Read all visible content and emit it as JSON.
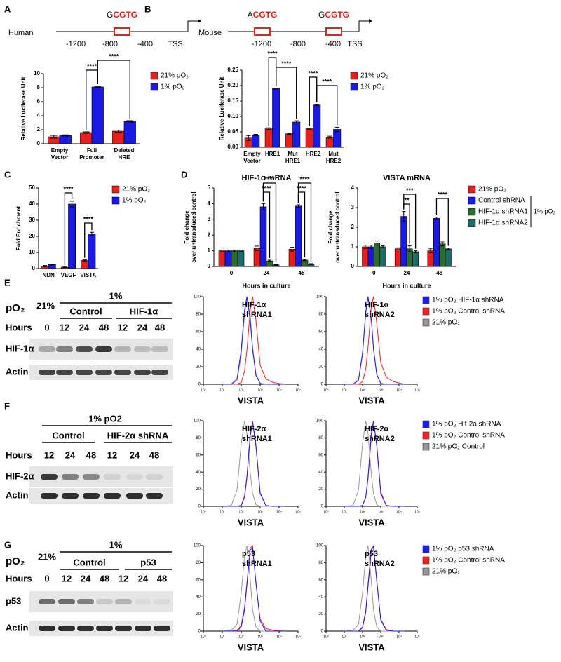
{
  "diagrams": [
    {
      "panel": "A",
      "species": "Human",
      "ticks": [
        "-1200",
        "-800",
        "-400",
        "TSS"
      ],
      "sites": [
        {
          "prefix": "G",
          "core": "CGTG"
        }
      ]
    },
    {
      "panel": "B",
      "species": "Mouse",
      "ticks": [
        "-1200",
        "-800",
        "-400",
        "TSS"
      ],
      "sites": [
        {
          "prefix": "A",
          "core": "CGTG"
        },
        {
          "prefix": "G",
          "core": "CGTG"
        }
      ]
    }
  ],
  "chart_data": [
    {
      "type": "bar",
      "ylabel": "Relative Luciferase Unit",
      "categories": [
        [
          "Empty",
          "Vector"
        ],
        [
          "Full",
          "Promoter"
        ],
        [
          "Deleted",
          "HRE"
        ]
      ],
      "series": [
        {
          "name": "21% pO₂",
          "color": "#e8201c",
          "values": [
            1.0,
            1.6,
            1.8
          ],
          "errors": [
            0.2,
            0.1,
            0.15
          ]
        },
        {
          "name": "1% pO₂",
          "color": "#1a1ae6",
          "values": [
            1.2,
            8.1,
            3.2
          ],
          "errors": [
            0.08,
            0.1,
            0.1
          ]
        }
      ],
      "ylim": [
        0,
        10
      ],
      "yticks": [
        0,
        2,
        4,
        6,
        8,
        10
      ],
      "significance": [
        "****",
        "****"
      ]
    },
    {
      "type": "bar",
      "ylabel": "Relative Luciferase Unit",
      "categories": [
        [
          "Empty",
          "Vector"
        ],
        [
          "HRE1"
        ],
        [
          "Mut",
          "HRE1"
        ],
        [
          "HRE2"
        ],
        [
          "Mut",
          "HRE2"
        ]
      ],
      "series": [
        {
          "name": "21% pO₂",
          "color": "#e8201c",
          "values": [
            0.03,
            0.06,
            0.044,
            0.06,
            0.033
          ],
          "errors": [
            0.008,
            0.003,
            0.002,
            0.002,
            0.003
          ]
        },
        {
          "name": "1% pO₂",
          "color": "#1a1ae6",
          "values": [
            0.04,
            0.19,
            0.082,
            0.137,
            0.058
          ],
          "errors": [
            0.002,
            0.002,
            0.004,
            0.002,
            0.007
          ]
        }
      ],
      "ylim": [
        0,
        0.25
      ],
      "yticks": [
        {
          "value": 0,
          "label": "0.00"
        },
        {
          "value": 0.05,
          "label": "0.05"
        },
        {
          "value": 0.1,
          "label": "0.10"
        },
        {
          "value": 0.15,
          "label": "0.15"
        },
        {
          "value": 0.2,
          "label": "0.20"
        },
        {
          "value": 0.25,
          "label": "0.25"
        }
      ],
      "significance": [
        "****",
        "****",
        "****",
        "****"
      ]
    },
    {
      "type": "bar",
      "panel": "C",
      "ylabel": "Fold Enrichment",
      "categories": [
        "NDN",
        "VEGF",
        "VISTA"
      ],
      "series": [
        {
          "name": "21% pO₂",
          "color": "#e8201c",
          "values": [
            1.5,
            0.8,
            5
          ],
          "errors": [
            0.4,
            0.2,
            0.4
          ]
        },
        {
          "name": "1% pO₂",
          "color": "#1a1ae6",
          "values": [
            2.5,
            40,
            21.5
          ],
          "errors": [
            0.3,
            1.8,
            1
          ]
        }
      ],
      "ylim": [
        0,
        50
      ],
      "yticks": [
        0,
        10,
        20,
        30,
        40,
        50
      ],
      "significance": [
        "****",
        "****"
      ]
    },
    {
      "type": "bar",
      "panel": "D",
      "title": "HIF-1α mRNA",
      "ylabel": [
        "Fold change",
        "over untransduced control"
      ],
      "xlabel": "Hours in culture",
      "categories": [
        "0",
        "24",
        "48"
      ],
      "series": [
        {
          "color": "#e8201c",
          "values": [
            1,
            1.15,
            1.1
          ],
          "errors": [
            0.05,
            0.15,
            0.12
          ]
        },
        {
          "color": "#1a1ae6",
          "values": [
            1,
            3.8,
            3.85
          ],
          "errors": [
            0.05,
            0.2,
            0.08
          ]
        },
        {
          "color": "#2f6b2f",
          "values": [
            1,
            0.35,
            0.4
          ],
          "errors": [
            0.05,
            0.05,
            0.04
          ]
        },
        {
          "color": "#1d6b66",
          "values": [
            1,
            0.1,
            0.15
          ],
          "errors": [
            0.05,
            0.03,
            0.03
          ]
        }
      ],
      "ylim": [
        0,
        5
      ],
      "yticks": [
        0,
        1,
        2,
        3,
        4,
        5
      ],
      "significance": [
        "****",
        "****",
        "****",
        "****"
      ]
    },
    {
      "type": "bar",
      "title": "VISTA mRNA",
      "ylabel": [
        "Fold change",
        "over untransduced control"
      ],
      "xlabel": "Hours in culture",
      "categories": [
        "0",
        "24",
        "48"
      ],
      "series": [
        {
          "name": "21% pO₂",
          "color": "#e8201c",
          "values": [
            1,
            0.9,
            0.8
          ],
          "errors": [
            0.08,
            0.05,
            0.1
          ]
        },
        {
          "name": "Control shRNA",
          "color": "#1a1ae6",
          "values": [
            1,
            2.55,
            2.45
          ],
          "errors": [
            0.08,
            0.25,
            0.06
          ]
        },
        {
          "name": "HIF-1α shRNA1",
          "color": "#2f6b2f",
          "values": [
            1.2,
            0.9,
            1.15
          ],
          "errors": [
            0.1,
            0.15,
            0.1
          ]
        },
        {
          "name": "HIF-1α shRNA2",
          "color": "#1d6b66",
          "values": [
            1,
            0.75,
            0.9
          ],
          "errors": [
            0.05,
            0.05,
            0.04
          ]
        }
      ],
      "legend_group": "1% pO₂",
      "ylim": [
        0,
        4
      ],
      "yticks": [
        0,
        1,
        2,
        3,
        4
      ],
      "significance": [
        "**",
        "***",
        "****"
      ]
    },
    {
      "type": "line",
      "xlabel": "VISTA",
      "annotation": [
        "HIF-1α",
        "shRNA1"
      ],
      "log_x": true,
      "xlim": [
        1,
        100000
      ],
      "xticks": [
        {
          "value": 1,
          "label": "10⁰"
        },
        {
          "value": 10,
          "label": "10¹"
        },
        {
          "value": 100,
          "label": "10²"
        },
        {
          "value": 1000,
          "label": "10³"
        },
        {
          "value": 10000,
          "label": "10⁴"
        },
        {
          "value": 100000,
          "label": "10⁵"
        }
      ],
      "ylim": [
        0,
        100
      ],
      "yticks": [
        0,
        20,
        40,
        60,
        80,
        100
      ],
      "x": [
        10,
        30,
        60,
        100,
        150,
        200,
        300,
        400,
        600,
        1000,
        2000,
        5000,
        20000
      ],
      "series": [
        {
          "color": "#1a1aff",
          "values": [
            0,
            0,
            6,
            39,
            85,
            100,
            73,
            39,
            10,
            1,
            0,
            0,
            0
          ]
        },
        {
          "color": "#ff2020",
          "values": [
            0,
            0,
            0,
            2,
            15,
            39,
            85,
            100,
            73,
            22,
            6,
            2,
            0
          ]
        },
        {
          "color": "#999999",
          "values": [
            0,
            0,
            4,
            33,
            80,
            98,
            78,
            43,
            12,
            1,
            0,
            0,
            0
          ]
        }
      ]
    },
    {
      "type": "line",
      "xlabel": "VISTA",
      "annotation": [
        "HIF-1α",
        "shRNA2"
      ],
      "log_x": true,
      "xlim": [
        1,
        100000
      ],
      "xticks": [
        {
          "value": 1,
          "label": "10⁰"
        },
        {
          "value": 10,
          "label": "10¹"
        },
        {
          "value": 100,
          "label": "10²"
        },
        {
          "value": 1000,
          "label": "10³"
        },
        {
          "value": 10000,
          "label": "10⁴"
        },
        {
          "value": 100000,
          "label": "10⁵"
        }
      ],
      "ylim": [
        0,
        100
      ],
      "yticks": [
        0,
        20,
        40,
        60,
        80,
        100
      ],
      "x": [
        10,
        30,
        60,
        100,
        150,
        200,
        300,
        400,
        600,
        1000,
        2000,
        5000,
        20000
      ],
      "series": [
        {
          "name": "1% pO₂ HIF-1α shRNA",
          "color": "#1a1aff",
          "values": [
            0,
            0,
            5,
            36,
            83,
            100,
            75,
            40,
            11,
            1,
            0,
            0,
            0
          ]
        },
        {
          "name": "1% pO₂ Control shRNA",
          "color": "#ff2020",
          "values": [
            0,
            0,
            0,
            3,
            17,
            42,
            88,
            100,
            70,
            25,
            8,
            3,
            0
          ]
        },
        {
          "name": "21% pO₂",
          "color": "#999999",
          "values": [
            0,
            0,
            4,
            33,
            80,
            98,
            78,
            43,
            12,
            1,
            0,
            0,
            0
          ]
        }
      ]
    },
    {
      "type": "line",
      "xlabel": "VISTA",
      "annotation": [
        "HIF-2α",
        "shRNA1"
      ],
      "log_x": true,
      "xlim": [
        1,
        100000
      ],
      "xticks": [
        {
          "value": 1,
          "label": "10⁰"
        },
        {
          "value": 10,
          "label": "10¹"
        },
        {
          "value": 100,
          "label": "10²"
        },
        {
          "value": 1000,
          "label": "10³"
        },
        {
          "value": 10000,
          "label": "10⁴"
        },
        {
          "value": 100000,
          "label": "10⁵"
        }
      ],
      "ylim": [
        0,
        100
      ],
      "yticks": [
        0,
        20,
        40,
        60,
        80,
        100
      ],
      "x": [
        10,
        30,
        60,
        100,
        150,
        200,
        300,
        400,
        600,
        1000,
        2000,
        5000,
        20000
      ],
      "series": [
        {
          "color": "#1a1aff",
          "values": [
            0,
            0,
            0,
            1,
            12,
            35,
            83,
            98,
            70,
            15,
            1,
            0,
            0
          ]
        },
        {
          "color": "#ff2020",
          "values": [
            0,
            0,
            0,
            1,
            10,
            33,
            82,
            100,
            72,
            16,
            1,
            0,
            0
          ]
        },
        {
          "color": "#999999",
          "values": [
            0,
            1,
            19,
            73,
            100,
            85,
            39,
            15,
            2,
            0,
            0,
            0,
            0
          ]
        }
      ]
    },
    {
      "type": "line",
      "xlabel": "VISTA",
      "annotation": [
        "HIF-2α",
        "shRNA2"
      ],
      "log_x": true,
      "xlim": [
        1,
        100000
      ],
      "xticks": [
        {
          "value": 1,
          "label": "10⁰"
        },
        {
          "value": 10,
          "label": "10¹"
        },
        {
          "value": 100,
          "label": "10²"
        },
        {
          "value": 1000,
          "label": "10³"
        },
        {
          "value": 10000,
          "label": "10⁴"
        },
        {
          "value": 100000,
          "label": "10⁵"
        }
      ],
      "ylim": [
        0,
        100
      ],
      "yticks": [
        0,
        20,
        40,
        60,
        80,
        100
      ],
      "x": [
        10,
        30,
        60,
        100,
        150,
        200,
        300,
        400,
        600,
        1000,
        2000,
        5000,
        20000
      ],
      "series": [
        {
          "name": "1% pO₂ Hif-2a shRNA",
          "color": "#1a1aff",
          "values": [
            0,
            0,
            0,
            1,
            11,
            34,
            84,
            100,
            71,
            15,
            1,
            0,
            0
          ]
        },
        {
          "name": "1% pO₂ Control shRNA",
          "color": "#ff2020",
          "values": [
            0,
            0,
            0,
            1,
            10,
            32,
            80,
            99,
            73,
            17,
            1,
            0,
            0
          ]
        },
        {
          "name": "21% pO₂ Control",
          "color": "#999999",
          "values": [
            0,
            1,
            19,
            73,
            100,
            85,
            39,
            15,
            2,
            0,
            0,
            0,
            0
          ]
        }
      ]
    },
    {
      "type": "line",
      "xlabel": "VISTA",
      "annotation": [
        "p53",
        "shRNA1"
      ],
      "log_x": true,
      "xlim": [
        1,
        100000
      ],
      "xticks": [
        {
          "value": 1,
          "label": "10⁰"
        },
        {
          "value": 10,
          "label": "10¹"
        },
        {
          "value": 100,
          "label": "10²"
        },
        {
          "value": 1000,
          "label": "10³"
        },
        {
          "value": 10000,
          "label": "10⁴"
        },
        {
          "value": 100000,
          "label": "10⁵"
        }
      ],
      "ylim": [
        0,
        100
      ],
      "yticks": [
        0,
        20,
        40,
        60,
        80,
        100
      ],
      "x": [
        10,
        30,
        60,
        100,
        150,
        200,
        300,
        400,
        600,
        1000,
        2000,
        5000,
        20000
      ],
      "series": [
        {
          "color": "#1a1aff",
          "values": [
            0,
            0,
            0,
            5,
            25,
            54,
            95,
            97,
            57,
            12,
            0,
            0,
            0
          ]
        },
        {
          "color": "#ff2020",
          "values": [
            0,
            0,
            1,
            7,
            28,
            57,
            97,
            100,
            55,
            14,
            3,
            1,
            0
          ]
        },
        {
          "color": "#999999",
          "values": [
            0,
            1,
            8,
            45,
            88,
            100,
            60,
            25,
            5,
            0,
            0,
            0,
            0
          ]
        }
      ]
    },
    {
      "type": "line",
      "xlabel": "VISTA",
      "annotation": [
        "p53",
        "shRNA2"
      ],
      "log_x": true,
      "xlim": [
        1,
        100000
      ],
      "xticks": [
        {
          "value": 1,
          "label": "10⁰"
        },
        {
          "value": 10,
          "label": "10¹"
        },
        {
          "value": 100,
          "label": "10²"
        },
        {
          "value": 1000,
          "label": "10³"
        },
        {
          "value": 10000,
          "label": "10⁴"
        },
        {
          "value": 100000,
          "label": "10⁵"
        }
      ],
      "ylim": [
        0,
        100
      ],
      "yticks": [
        0,
        20,
        40,
        60,
        80,
        100
      ],
      "x": [
        10,
        30,
        60,
        100,
        150,
        200,
        300,
        400,
        600,
        1000,
        2000,
        5000,
        20000
      ],
      "series": [
        {
          "name": "1% pO₂ p53 shRNA",
          "color": "#1a1aff",
          "values": [
            0,
            0,
            0,
            4,
            22,
            52,
            93,
            100,
            60,
            13,
            1,
            0,
            0
          ]
        },
        {
          "name": "1% pO₂ Control shRNA",
          "color": "#ff2020",
          "values": [
            0,
            0,
            0,
            5,
            24,
            55,
            96,
            98,
            58,
            14,
            2,
            0,
            0
          ]
        },
        {
          "name": "21% pO₂",
          "color": "#999999",
          "values": [
            0,
            1,
            8,
            45,
            88,
            100,
            60,
            25,
            5,
            0,
            0,
            0,
            0
          ]
        }
      ]
    }
  ],
  "blots": [
    {
      "panel": "E",
      "po2_label": "pO₂",
      "baseline": "21%",
      "treatment": "1%",
      "groups": [
        "Control",
        "HIF-1α"
      ],
      "hours_label": "Hours",
      "lanes": [
        "0",
        "12",
        "24",
        "48",
        "12",
        "24",
        "48"
      ],
      "rows": [
        "HIF-1α",
        "Actin"
      ]
    },
    {
      "panel": "F",
      "treatment": "1% pO2",
      "groups": [
        "Control",
        "HIF-2α shRNA"
      ],
      "hours_label": "Hours",
      "lanes": [
        "12",
        "24",
        "48",
        "12",
        "24",
        "48"
      ],
      "rows": [
        "HIF-2α",
        "Actin"
      ]
    },
    {
      "panel": "G",
      "po2_label": "pO₂",
      "baseline": "21%",
      "treatment": "1%",
      "groups": [
        "Control",
        "p53"
      ],
      "hours_label": "Hours",
      "lanes": [
        "0",
        "12",
        "24",
        "48",
        "12",
        "24",
        "48"
      ],
      "rows": [
        "p53",
        "Actin"
      ]
    }
  ]
}
